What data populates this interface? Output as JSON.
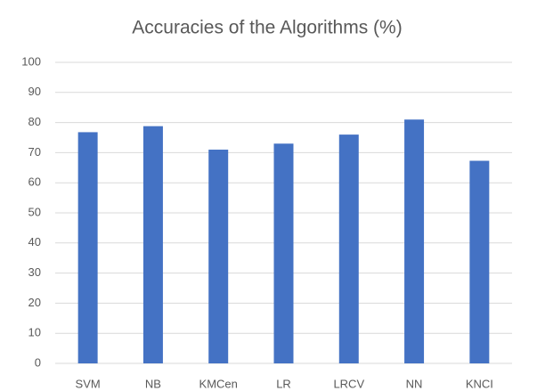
{
  "chart_data": {
    "type": "bar",
    "title": "Accuracies of the Algorithms (%)",
    "categories": [
      "SVM",
      "NB",
      "KMCen",
      "LR",
      "LRCV",
      "NN",
      "KNCI"
    ],
    "values": [
      76.8,
      78.8,
      71,
      73,
      76,
      81,
      67.3
    ],
    "color": "#4472c4",
    "ylim": [
      0,
      100
    ],
    "yticks": [
      0,
      10,
      20,
      30,
      40,
      50,
      60,
      70,
      80,
      90,
      100
    ],
    "grid": true
  }
}
